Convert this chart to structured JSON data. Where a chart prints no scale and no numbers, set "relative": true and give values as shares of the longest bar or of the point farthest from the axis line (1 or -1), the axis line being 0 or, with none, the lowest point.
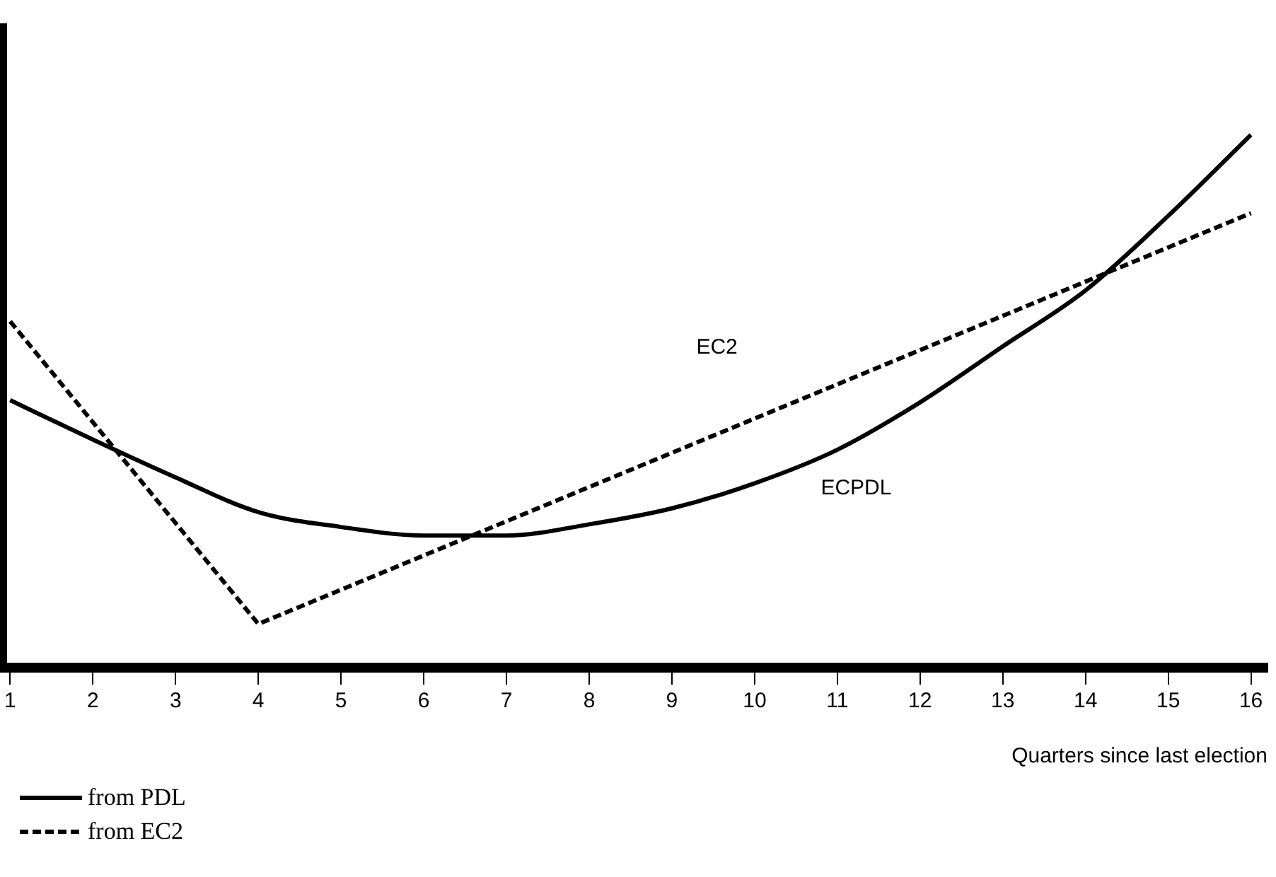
{
  "chart_data": {
    "type": "line",
    "relative": true,
    "xlabel": "Quarters since last election",
    "x": [
      1,
      2,
      3,
      4,
      5,
      6,
      7,
      8,
      9,
      10,
      11,
      12,
      13,
      14,
      15,
      16
    ],
    "xlim": [
      0.9,
      16.2
    ],
    "xticks": [
      1,
      2,
      3,
      4,
      5,
      6,
      7,
      8,
      9,
      10,
      11,
      12,
      13,
      14,
      15,
      16
    ],
    "grid": false,
    "legend": "bottom left",
    "marker": "none",
    "series": [
      {
        "name": "from PDL",
        "color": "#000000",
        "line_style": "solid",
        "values": [
          0.502,
          0.428,
          0.357,
          0.292,
          0.264,
          0.248,
          0.248,
          0.269,
          0.299,
          0.346,
          0.409,
          0.498,
          0.603,
          0.708,
          0.848,
          1
        ]
      },
      {
        "name": "from EC2",
        "color": "#000000",
        "line_style": "dashed",
        "x": [
          1,
          4,
          16
        ],
        "values": [
          0.65,
          0.082,
          0.853
        ]
      }
    ],
    "annotations": [
      "EC2",
      "ECPDL"
    ]
  }
}
